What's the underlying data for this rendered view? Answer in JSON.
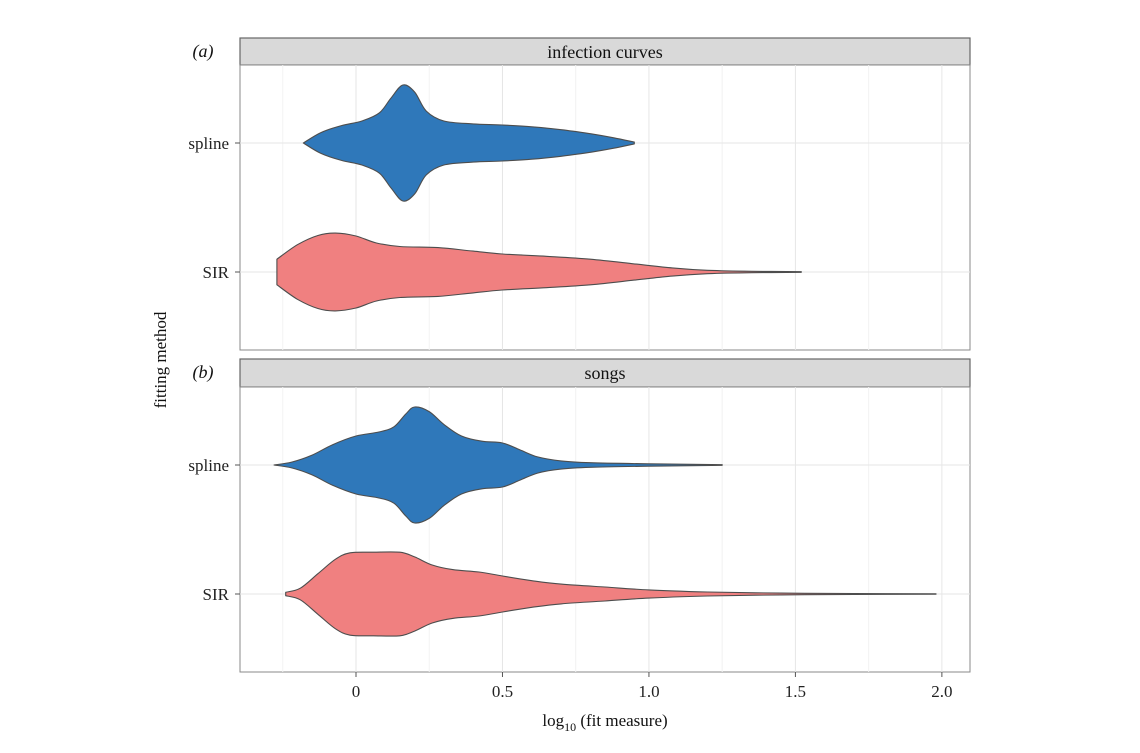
{
  "chart_data": {
    "type": "violin",
    "orientation": "horizontal",
    "xlabel": "log10 (fit measure)",
    "xlabel_main": "log",
    "xlabel_sub": "10",
    "xlabel_rest": " (fit measure)",
    "ylabel": "fitting method",
    "xlim": [
      -0.396,
      2.096
    ],
    "xticks": [
      0,
      0.5,
      1.0,
      1.5,
      2.0
    ],
    "xtick_labels": [
      "0",
      "0.5",
      "1.0",
      "1.5",
      "2.0"
    ],
    "minor_grid": [
      -0.25,
      0.25,
      0.75,
      1.25,
      1.75
    ],
    "grid": true,
    "categories": [
      "spline",
      "SIR"
    ],
    "colors": {
      "spline": "#2f78ba",
      "SIR": "#f08080",
      "outline": "#4d4d4d",
      "strip_fill": "#d9d9d9"
    },
    "panels": [
      {
        "tag": "(a)",
        "title": "infection curves",
        "violins": [
          {
            "name": "spline",
            "density": [
              [
                -0.18,
                0
              ],
              [
                -0.12,
                0.18
              ],
              [
                -0.05,
                0.3
              ],
              [
                0.02,
                0.38
              ],
              [
                0.08,
                0.52
              ],
              [
                0.12,
                0.78
              ],
              [
                0.16,
                1.0
              ],
              [
                0.2,
                0.88
              ],
              [
                0.24,
                0.55
              ],
              [
                0.3,
                0.38
              ],
              [
                0.4,
                0.33
              ],
              [
                0.5,
                0.31
              ],
              [
                0.6,
                0.28
              ],
              [
                0.7,
                0.23
              ],
              [
                0.8,
                0.16
              ],
              [
                0.88,
                0.09
              ],
              [
                0.95,
                0.015
              ]
            ]
          },
          {
            "name": "SIR",
            "density": [
              [
                -0.27,
                0.22
              ],
              [
                -0.2,
                0.47
              ],
              [
                -0.13,
                0.63
              ],
              [
                -0.07,
                0.67
              ],
              [
                0.0,
                0.62
              ],
              [
                0.07,
                0.5
              ],
              [
                0.15,
                0.44
              ],
              [
                0.28,
                0.42
              ],
              [
                0.4,
                0.36
              ],
              [
                0.5,
                0.31
              ],
              [
                0.65,
                0.27
              ],
              [
                0.8,
                0.22
              ],
              [
                0.95,
                0.14
              ],
              [
                1.08,
                0.07
              ],
              [
                1.2,
                0.03
              ],
              [
                1.35,
                0.012
              ],
              [
                1.52,
                0.006
              ]
            ]
          }
        ]
      },
      {
        "tag": "(b)",
        "title": "songs",
        "violins": [
          {
            "name": "spline",
            "density": [
              [
                -0.28,
                0
              ],
              [
                -0.22,
                0.05
              ],
              [
                -0.15,
                0.17
              ],
              [
                -0.08,
                0.35
              ],
              [
                0.0,
                0.5
              ],
              [
                0.08,
                0.57
              ],
              [
                0.13,
                0.66
              ],
              [
                0.17,
                0.88
              ],
              [
                0.2,
                1.0
              ],
              [
                0.25,
                0.92
              ],
              [
                0.3,
                0.7
              ],
              [
                0.36,
                0.5
              ],
              [
                0.43,
                0.41
              ],
              [
                0.5,
                0.38
              ],
              [
                0.56,
                0.26
              ],
              [
                0.62,
                0.14
              ],
              [
                0.7,
                0.07
              ],
              [
                0.8,
                0.04
              ],
              [
                1.0,
                0.02
              ],
              [
                1.25,
                0.006
              ]
            ]
          },
          {
            "name": "SIR",
            "density": [
              [
                -0.24,
                0.03
              ],
              [
                -0.19,
                0.1
              ],
              [
                -0.13,
                0.35
              ],
              [
                -0.07,
                0.6
              ],
              [
                -0.02,
                0.71
              ],
              [
                0.06,
                0.72
              ],
              [
                0.15,
                0.72
              ],
              [
                0.2,
                0.64
              ],
              [
                0.26,
                0.5
              ],
              [
                0.33,
                0.42
              ],
              [
                0.42,
                0.38
              ],
              [
                0.5,
                0.31
              ],
              [
                0.6,
                0.23
              ],
              [
                0.7,
                0.17
              ],
              [
                0.85,
                0.12
              ],
              [
                1.0,
                0.07
              ],
              [
                1.2,
                0.035
              ],
              [
                1.45,
                0.016
              ],
              [
                1.7,
                0.008
              ],
              [
                1.98,
                0.004
              ]
            ]
          }
        ]
      }
    ]
  }
}
